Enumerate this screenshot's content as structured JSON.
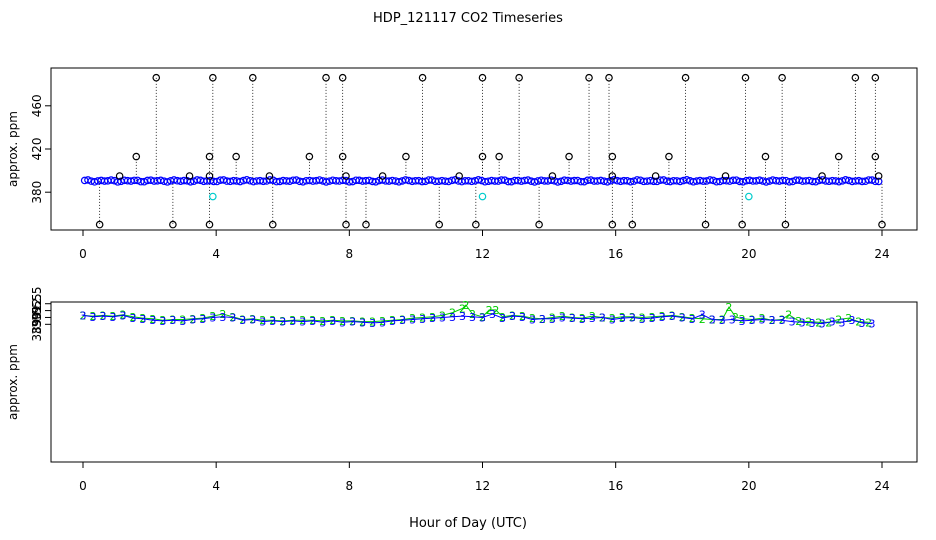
{
  "title": "HDP_121117  CO2 Timeseries",
  "xlabel": "Hour of Day (UTC)",
  "colors": {
    "primary": "#0000ff",
    "secondary": "#00cc00",
    "spike": "#000000",
    "flagged": "#00cccc"
  },
  "chart_data": [
    {
      "type": "scatter",
      "title": "HDP_121117  CO2 Timeseries",
      "ylabel": "approx. ppm",
      "xlim": [
        0,
        24
      ],
      "ylim": [
        345,
        495
      ],
      "x_ticks": [
        0,
        4,
        8,
        12,
        16,
        20,
        24
      ],
      "y_ticks": [
        380,
        420,
        460
      ],
      "baseline_ppm": 390.5,
      "high_spikes": [
        2.2,
        3.9,
        5.1,
        7.3,
        7.8,
        10.2,
        12.0,
        13.1,
        15.2,
        15.8,
        18.1,
        19.9,
        21.0,
        23.2,
        23.8
      ],
      "high_spike_ppm": 486,
      "mid_spikes": [
        1.6,
        3.8,
        4.6,
        6.8,
        7.8,
        9.7,
        12.0,
        12.5,
        14.6,
        15.9,
        17.6,
        20.5,
        22.7,
        23.8
      ],
      "mid_spike_ppm": 413,
      "small_spikes": [
        1.1,
        3.2,
        3.8,
        5.6,
        7.9,
        9.0,
        11.3,
        14.1,
        15.9,
        17.2,
        19.3,
        22.2,
        23.9
      ],
      "small_spike_ppm": 395,
      "low_spikes": [
        0.5,
        2.7,
        3.8,
        5.7,
        7.9,
        8.5,
        10.7,
        11.8,
        13.7,
        15.9,
        16.5,
        18.7,
        19.8,
        21.1,
        24.0
      ],
      "low_spike_ppm": 350,
      "flagged_points": [
        3.9,
        12.0,
        20.0
      ],
      "flagged_ppm": 376
    },
    {
      "type": "line",
      "ylabel": "approx. ppm",
      "xlim": [
        0,
        24
      ],
      "ylim": [
        369.45,
        392.75
      ],
      "x_ticks": [
        0,
        4,
        8,
        12,
        16,
        20,
        24
      ],
      "y_ticks": [
        389.5,
        390.5,
        391.5,
        392.5
      ],
      "series": [
        {
          "name": "3",
          "color": "#0000ff",
          "x": [
            0.0,
            0.3,
            0.6,
            0.9,
            1.2,
            1.5,
            1.8,
            2.1,
            2.4,
            2.7,
            3.0,
            3.3,
            3.6,
            3.9,
            4.2,
            4.5,
            4.8,
            5.1,
            5.4,
            5.7,
            6.0,
            6.3,
            6.6,
            6.9,
            7.2,
            7.5,
            7.8,
            8.1,
            8.4,
            8.7,
            9.0,
            9.3,
            9.6,
            9.9,
            10.2,
            10.5,
            10.8,
            11.1,
            11.4,
            11.7,
            12.0,
            12.3,
            12.6,
            12.9,
            13.2,
            13.5,
            13.8,
            14.1,
            14.4,
            14.7,
            15.0,
            15.3,
            15.6,
            15.9,
            16.2,
            16.5,
            16.8,
            17.1,
            17.4,
            17.7,
            18.0,
            18.3,
            18.6,
            18.9,
            19.2,
            19.5,
            19.8,
            20.1,
            20.4,
            20.7,
            21.0,
            21.3,
            21.6,
            21.9,
            22.2,
            22.5,
            22.8,
            23.1,
            23.4,
            23.7
          ],
          "values": [
            390.8,
            390.6,
            390.7,
            390.6,
            390.8,
            390.4,
            390.3,
            390.1,
            390.0,
            390.1,
            390.0,
            390.2,
            390.3,
            390.5,
            390.6,
            390.5,
            390.1,
            390.2,
            389.9,
            390.0,
            389.9,
            390.0,
            389.9,
            390.0,
            389.8,
            390.0,
            389.8,
            389.9,
            389.8,
            389.7,
            389.8,
            390.0,
            390.1,
            390.2,
            390.3,
            390.4,
            390.5,
            390.6,
            390.7,
            390.6,
            390.5,
            391.0,
            390.4,
            390.7,
            390.6,
            390.2,
            390.3,
            390.3,
            390.5,
            390.4,
            390.3,
            390.4,
            390.5,
            390.2,
            390.4,
            390.5,
            390.3,
            390.4,
            390.6,
            390.7,
            390.5,
            390.3,
            390.9,
            390.2,
            390.1,
            390.2,
            390.0,
            390.1,
            390.2,
            390.1,
            390.1,
            389.9,
            389.8,
            389.7,
            389.6,
            389.9,
            389.8,
            390.1,
            389.7,
            389.6
          ]
        },
        {
          "name": "2",
          "color": "#00cc00",
          "x": [
            0.0,
            0.3,
            0.6,
            0.9,
            1.2,
            1.5,
            1.8,
            2.1,
            2.4,
            2.7,
            3.0,
            3.3,
            3.6,
            3.9,
            4.2,
            4.5,
            4.8,
            5.1,
            5.4,
            5.7,
            6.0,
            6.3,
            6.6,
            6.9,
            7.2,
            7.5,
            7.8,
            8.1,
            8.4,
            8.7,
            9.0,
            9.3,
            9.6,
            9.9,
            10.2,
            10.5,
            10.8,
            11.1,
            11.4,
            11.5,
            11.7,
            12.0,
            12.2,
            12.4,
            12.6,
            12.9,
            13.2,
            13.5,
            13.8,
            14.1,
            14.4,
            14.7,
            15.0,
            15.3,
            15.6,
            15.9,
            16.2,
            16.5,
            16.8,
            17.1,
            17.4,
            17.7,
            18.0,
            18.3,
            18.6,
            18.9,
            19.2,
            19.4,
            19.6,
            19.8,
            20.1,
            20.4,
            20.7,
            21.0,
            21.2,
            21.5,
            21.8,
            22.1,
            22.4,
            22.7,
            23.0,
            23.3,
            23.6
          ],
          "values": [
            390.8,
            390.7,
            390.8,
            390.7,
            390.9,
            390.6,
            390.4,
            390.3,
            390.1,
            390.2,
            390.2,
            390.3,
            390.4,
            390.7,
            391.0,
            390.6,
            390.2,
            390.3,
            390.1,
            390.1,
            390.0,
            390.1,
            390.1,
            390.1,
            390.0,
            390.1,
            390.0,
            390.0,
            389.9,
            389.9,
            390.0,
            390.1,
            390.2,
            390.4,
            390.5,
            390.6,
            390.8,
            391.2,
            391.8,
            392.3,
            391.0,
            390.6,
            391.6,
            391.6,
            390.6,
            390.8,
            390.7,
            390.4,
            390.3,
            390.5,
            390.7,
            390.5,
            390.4,
            390.7,
            390.5,
            390.4,
            390.6,
            390.6,
            390.5,
            390.6,
            390.7,
            390.8,
            390.6,
            390.4,
            390.3,
            390.2,
            390.2,
            392.0,
            390.6,
            390.3,
            390.2,
            390.4,
            390.1,
            390.2,
            390.9,
            390.0,
            389.9,
            389.8,
            389.8,
            390.2,
            390.4,
            389.9,
            389.8
          ]
        }
      ]
    }
  ]
}
